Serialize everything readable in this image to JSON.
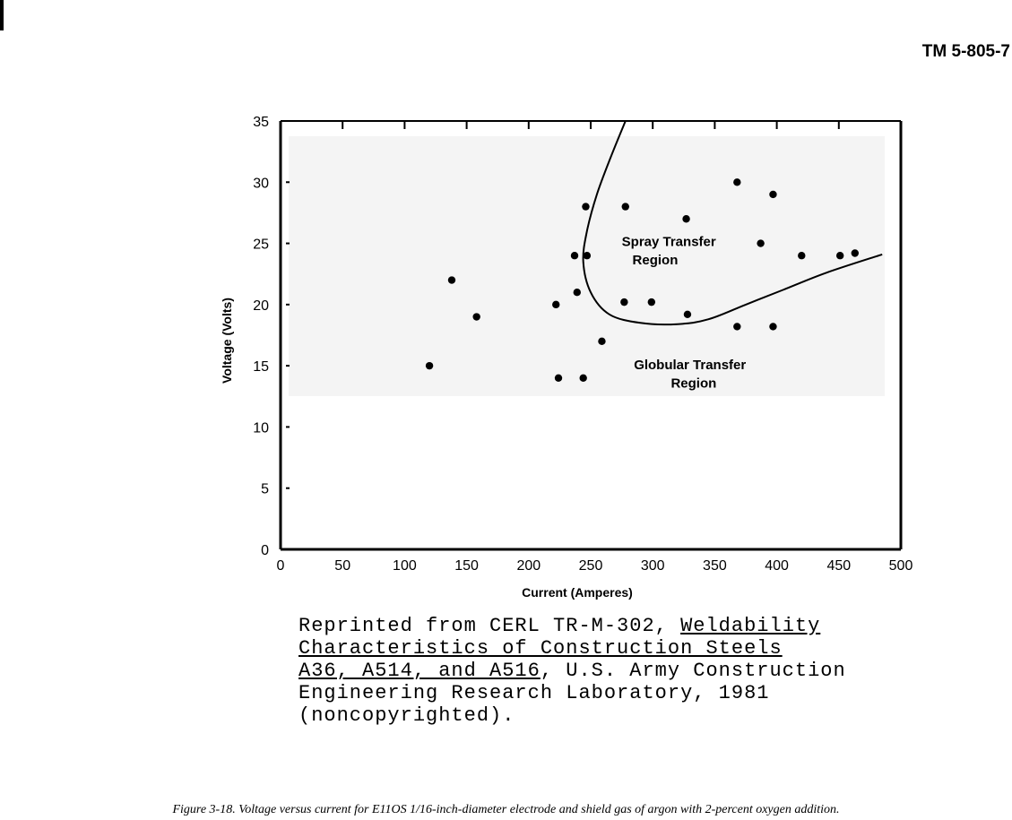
{
  "page": {
    "header_code": "TM 5-805-7",
    "caption": "Figure 3-18. Voltage versus current for E11OS 1/16-inch-diameter electrode and shield gas of argon with 2-percent oxygen addition."
  },
  "reprint_note": {
    "line1_prefix": "Reprinted from CERL TR-M-302, ",
    "line1_underlined": "Weldability",
    "line2_underlined": "Characteristics of Construction Steels",
    "line3_underlined": "A36, A514, and A516",
    "line3_suffix": ", U.S. Army Construction",
    "line4": "Engineering Research Laboratory, 1981",
    "line5": "(noncopyrighted)."
  },
  "chart_data": {
    "type": "scatter",
    "title": "",
    "xlabel": "Current (Amperes)",
    "ylabel": "Voltage (Volts)",
    "xlim": [
      0,
      500
    ],
    "ylim": [
      0,
      35
    ],
    "x_ticks": [
      0,
      50,
      100,
      150,
      200,
      250,
      300,
      350,
      400,
      450,
      500
    ],
    "y_ticks": [
      0,
      5,
      10,
      15,
      20,
      25,
      30,
      35
    ],
    "grid": false,
    "points": [
      {
        "x": 120,
        "y": 15
      },
      {
        "x": 138,
        "y": 22
      },
      {
        "x": 158,
        "y": 19
      },
      {
        "x": 222,
        "y": 20
      },
      {
        "x": 224,
        "y": 14
      },
      {
        "x": 237,
        "y": 24
      },
      {
        "x": 239,
        "y": 21
      },
      {
        "x": 244,
        "y": 14
      },
      {
        "x": 246,
        "y": 28
      },
      {
        "x": 247,
        "y": 24
      },
      {
        "x": 259,
        "y": 17
      },
      {
        "x": 277,
        "y": 20.2
      },
      {
        "x": 278,
        "y": 28
      },
      {
        "x": 299,
        "y": 20.2
      },
      {
        "x": 327,
        "y": 27
      },
      {
        "x": 328,
        "y": 19.2
      },
      {
        "x": 368,
        "y": 30
      },
      {
        "x": 368,
        "y": 18.2
      },
      {
        "x": 387,
        "y": 25
      },
      {
        "x": 397,
        "y": 29
      },
      {
        "x": 397,
        "y": 18.2
      },
      {
        "x": 420,
        "y": 24
      },
      {
        "x": 451,
        "y": 24
      },
      {
        "x": 463,
        "y": 24.2
      }
    ],
    "boundary_curve": [
      [
        278,
        35
      ],
      [
        266,
        32
      ],
      [
        255,
        29
      ],
      [
        247,
        26
      ],
      [
        244,
        23.5
      ],
      [
        250,
        21
      ],
      [
        265,
        19.2
      ],
      [
        290,
        18.5
      ],
      [
        320,
        18.4
      ],
      [
        345,
        18.8
      ],
      [
        375,
        20
      ],
      [
        405,
        21.2
      ],
      [
        440,
        22.6
      ],
      [
        485,
        24.1
      ]
    ],
    "annotations": [
      {
        "text": "Spray Transfer",
        "x": 313,
        "y": 24.8
      },
      {
        "text": "Region",
        "x": 302,
        "y": 23.3
      },
      {
        "text": "Globular Transfer",
        "x": 330,
        "y": 14.7
      },
      {
        "text": "Region",
        "x": 333,
        "y": 13.2
      }
    ]
  }
}
